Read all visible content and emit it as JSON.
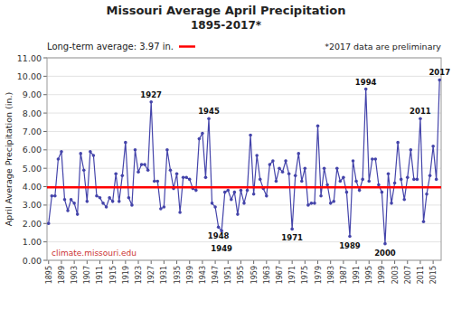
{
  "chart_data": {
    "type": "line",
    "title": "Missouri Average April Precipitation",
    "subtitle": "1895-2017*",
    "y_label": "April Average Precipitation (in.)",
    "x": [
      1895,
      1896,
      1897,
      1898,
      1899,
      1900,
      1901,
      1902,
      1903,
      1904,
      1905,
      1906,
      1907,
      1908,
      1909,
      1910,
      1911,
      1912,
      1913,
      1914,
      1915,
      1916,
      1917,
      1918,
      1919,
      1920,
      1921,
      1922,
      1923,
      1924,
      1925,
      1926,
      1927,
      1928,
      1929,
      1930,
      1931,
      1932,
      1933,
      1934,
      1935,
      1936,
      1937,
      1938,
      1939,
      1940,
      1941,
      1942,
      1943,
      1944,
      1945,
      1946,
      1947,
      1948,
      1949,
      1950,
      1951,
      1952,
      1953,
      1954,
      1955,
      1956,
      1957,
      1958,
      1959,
      1960,
      1961,
      1962,
      1963,
      1964,
      1965,
      1966,
      1967,
      1968,
      1969,
      1970,
      1971,
      1972,
      1973,
      1974,
      1975,
      1976,
      1977,
      1978,
      1979,
      1980,
      1981,
      1982,
      1983,
      1984,
      1985,
      1986,
      1987,
      1988,
      1989,
      1990,
      1991,
      1992,
      1993,
      1994,
      1995,
      1996,
      1997,
      1998,
      1999,
      2000,
      2001,
      2002,
      2003,
      2004,
      2005,
      2006,
      2007,
      2008,
      2009,
      2010,
      2011,
      2012,
      2013,
      2014,
      2015,
      2016,
      2017
    ],
    "values": [
      2.0,
      3.5,
      3.5,
      5.5,
      5.9,
      3.3,
      2.7,
      3.3,
      3.1,
      2.5,
      5.8,
      4.9,
      3.2,
      5.9,
      5.7,
      3.5,
      3.4,
      3.1,
      2.9,
      3.4,
      3.2,
      4.7,
      3.2,
      4.6,
      6.4,
      3.4,
      3.0,
      6.0,
      4.8,
      5.2,
      5.2,
      4.9,
      8.6,
      4.3,
      4.3,
      2.8,
      2.9,
      6.0,
      4.9,
      3.9,
      4.7,
      2.6,
      4.5,
      4.5,
      4.4,
      3.9,
      3.8,
      6.6,
      6.9,
      4.5,
      7.7,
      3.1,
      2.9,
      1.8,
      1.6,
      3.7,
      3.8,
      3.3,
      3.7,
      2.5,
      3.8,
      3.1,
      3.8,
      6.8,
      3.6,
      5.7,
      4.4,
      3.9,
      3.5,
      5.2,
      5.4,
      4.3,
      5.0,
      4.8,
      5.4,
      4.7,
      1.7,
      4.6,
      5.8,
      4.3,
      5.0,
      3.0,
      3.1,
      3.1,
      7.3,
      3.5,
      5.0,
      4.1,
      3.1,
      3.2,
      5.0,
      4.3,
      4.5,
      3.7,
      1.3,
      5.4,
      4.3,
      3.8,
      4.4,
      9.3,
      4.3,
      5.5,
      5.5,
      4.1,
      3.7,
      0.9,
      4.7,
      3.1,
      4.2,
      6.4,
      4.4,
      3.3,
      4.5,
      6.0,
      4.4,
      4.4,
      7.7,
      2.1,
      3.6,
      4.6,
      6.2,
      4.4,
      9.8
    ],
    "color": "#4444AA",
    "marker": "circle",
    "xlim": [
      1894.5,
      2017.5
    ],
    "xticks": [
      1895,
      1899,
      1903,
      1907,
      1911,
      1915,
      1919,
      1923,
      1927,
      1931,
      1935,
      1939,
      1943,
      1947,
      1951,
      1955,
      1959,
      1963,
      1967,
      1971,
      1975,
      1979,
      1983,
      1987,
      1991,
      1995,
      1999,
      2003,
      2007,
      2011,
      2015
    ],
    "ylim": [
      0.0,
      11.0
    ],
    "yticks": [
      {
        "value": 0.0,
        "label": "0.00"
      },
      {
        "value": 1.0,
        "label": "1.00"
      },
      {
        "value": 2.0,
        "label": "2.00"
      },
      {
        "value": 3.0,
        "label": "3.00"
      },
      {
        "value": 4.0,
        "label": "4.00"
      },
      {
        "value": 5.0,
        "label": "5.00"
      },
      {
        "value": 6.0,
        "label": "6.00"
      },
      {
        "value": 7.0,
        "label": "7.00"
      },
      {
        "value": 8.0,
        "label": "8.00"
      },
      {
        "value": 9.0,
        "label": "9.00"
      },
      {
        "value": 10.0,
        "label": "10.00"
      },
      {
        "value": 11.0,
        "label": "11.00"
      }
    ],
    "grid": true,
    "reference_line": {
      "value": 3.97,
      "label": "Long-term average: 3.97 in.",
      "color": "#FF0000"
    },
    "note": "*2017 data are preliminary",
    "source": "climate.missouri.edu",
    "annotations": [
      {
        "text": "1927",
        "x": 1927,
        "y": 8.6
      },
      {
        "text": "1945",
        "x": 1945,
        "y": 7.7
      },
      {
        "text": "1948",
        "x": 1948,
        "y": 1.8
      },
      {
        "text": "1949",
        "x": 1949,
        "y": 1.6
      },
      {
        "text": "1971",
        "x": 1971,
        "y": 1.7
      },
      {
        "text": "1989",
        "x": 1989,
        "y": 1.3
      },
      {
        "text": "1994",
        "x": 1994,
        "y": 9.3
      },
      {
        "text": "2000",
        "x": 2000,
        "y": 0.9
      },
      {
        "text": "2011",
        "x": 2011,
        "y": 7.7
      },
      {
        "text": "2017",
        "x": 2017,
        "y": 9.8
      }
    ]
  }
}
